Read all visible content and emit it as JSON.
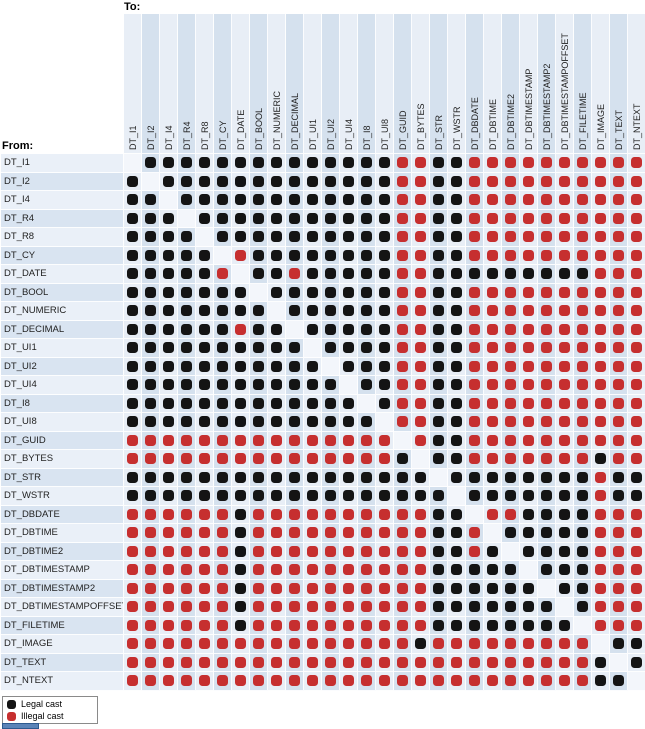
{
  "chart_data": {
    "type": "heatmap",
    "x_axis_label": "To:",
    "y_axis_label": "From:",
    "columns": [
      "DT_I1",
      "DT_I2",
      "DT_I4",
      "DT_R4",
      "DT_R8",
      "DT_CY",
      "DT_DATE",
      "DT_BOOL",
      "DT_NUMERIC",
      "DT_DECIMAL",
      "DT_UI1",
      "DT_UI2",
      "DT_UI4",
      "DT_I8",
      "DT_UI8",
      "DT_GUID",
      "DT_BYTES",
      "DT_STR",
      "DT_WSTR",
      "DT_DBDATE",
      "DT_DBTIME",
      "DT_DBTIME2",
      "DT_DBTIMESTAMP",
      "DT_DBTIMESTAMP2",
      "DT_DBTIMESTAMPOFFSET",
      "DT_FILETIME",
      "DT_IMAGE",
      "DT_TEXT",
      "DT_NTEXT"
    ],
    "rows": [
      "DT_I1",
      "DT_I2",
      "DT_I4",
      "DT_R4",
      "DT_R8",
      "DT_CY",
      "DT_DATE",
      "DT_BOOL",
      "DT_NUMERIC",
      "DT_DECIMAL",
      "DT_UI1",
      "DT_UI2",
      "DT_UI4",
      "DT_I8",
      "DT_UI8",
      "DT_GUID",
      "DT_BYTES",
      "DT_STR",
      "DT_WSTR",
      "DT_DBDATE",
      "DT_DBTIME",
      "DT_DBTIME2",
      "DT_DBTIMESTAMP",
      "DT_DBTIMESTAMP2",
      "DT_DBTIMESTAMPOFFSET",
      "DT_FILETIME",
      "DT_IMAGE",
      "DT_TEXT",
      "DT_NTEXT"
    ],
    "cell_encoding": {
      "L": "legal cast (black dot)",
      "I": "illegal cast (red dot)",
      ".": "same type (no dot)"
    },
    "matrix": [
      ".LLLLLLLLLLLLLLIILLIIIIIIIIII",
      "L.LLLLLLLLLLLLLIILLIIIIIIIIII",
      "LL.LLLLLLLLLLLLIILLIIIIIIIIII",
      "LLL.LLLLLLLLLLLIILLIIIIIIIIII",
      "LLLL.LLLLLLLLLLIILLIIIIIIIIII",
      "LLLLL.ILLLLLLLLIILLIIIIIIIIII",
      "LLLLLI.LLILLLLLIILLLLLLLLLIII",
      "LLLLLLL.LLLLLLLIILLIIIIIIIIII",
      "LLLLLLLL.LLLLLLIILLIIIIIIIIII",
      "LLLLLLILL.LLLLLIILLIIIIIIIIII",
      "LLLLLLLLLL.LLLLIILLIIIIIIIIII",
      "LLLLLLLLLLL.LLLIILLIIIIIIIIII",
      "LLLLLLLLLLLL.LLIILLIIIIIIIIII",
      "LLLLLLLLLLLLL.LIILLIIIIIIIIII",
      "LLLLLLLLLLLLLL.IILLIIIIIIIIII",
      "IIIIIIIIIIIIIII.ILLIIIIIIIIII",
      "IIIIIIIIIIIIIIIL.LLIIIIIIILII",
      "LLLLLLLLLLLLLLLLL.LLLLLLLLILL",
      "LLLLLLLLLLLLLLLLLL.LLLLLLLILL",
      "IIIIIILIIIIIIIIIILL.IILLLLIII",
      "IIIIIILIIIIIIIIIILLI.LLLLLIII",
      "IIIIIILIIIIIIIIIILLIL.LLLLIII",
      "IIIIIILIIIIIIIIIILLLLL.LLLIII",
      "IIIIIILIIIIIIIIIILLLLLL.LLIII",
      "IIIIIILIIIIIIIIIILLLLLLL.LIII",
      "IIIIIILIIIIIIIIIILLLLLLLL.III",
      "IIIIIIIIIIIIIIIILIIIIIIIII.LL",
      "IIIIIIIIIIIIIIIIIIIIIIIIIIL.L",
      "IIIIIIIIIIIIIIIIIIIIIIIIIILL."
    ],
    "legend": [
      {
        "label": "Legal cast",
        "color": "#141414",
        "key": "L"
      },
      {
        "label": "Illegal cast",
        "color": "#c62f2f",
        "key": "I"
      }
    ],
    "legend_position": "bottom-left",
    "grid": true,
    "colors": {
      "legal": "#141414",
      "illegal": "#c62f2f",
      "stripe_light": "#e8eef6",
      "stripe_dark": "#d5e1ee",
      "label_light": "#eaf0f8",
      "label_dark": "#d9e4f1",
      "diagonal": "#f3f6fb"
    }
  }
}
